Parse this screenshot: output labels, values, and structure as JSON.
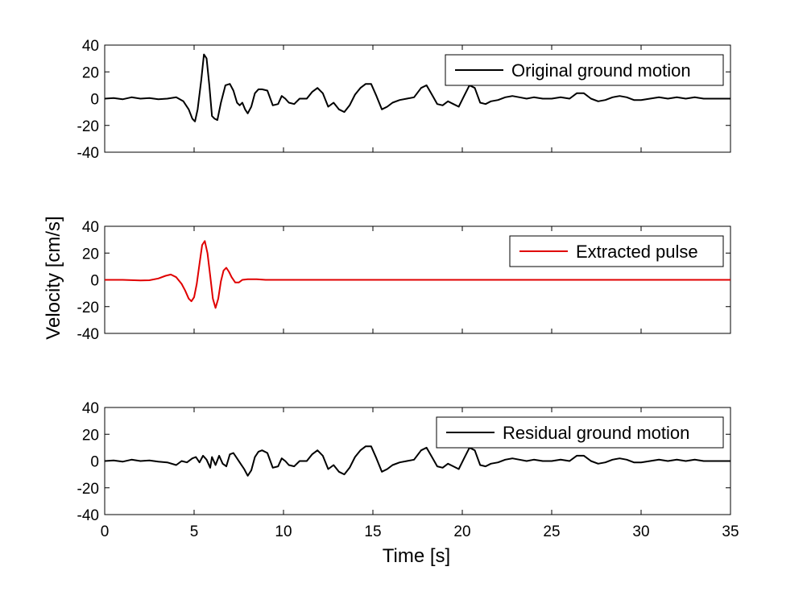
{
  "figure": {
    "ylabel": "Velocity [cm/s]",
    "xlabel": "Time [s]"
  },
  "chart_data": [
    {
      "type": "line",
      "legend": "Original ground motion",
      "legend_position": "top-right",
      "color": "#000000",
      "xlim": [
        0,
        35
      ],
      "ylim": [
        -40,
        40
      ],
      "xticks": [
        0,
        5,
        10,
        15,
        20,
        25,
        30,
        35
      ],
      "yticks": [
        -40,
        -20,
        0,
        20,
        40
      ],
      "show_x_tick_labels": false,
      "series": [
        {
          "name": "Original ground motion",
          "x": [
            0,
            0.5,
            1,
            1.5,
            2,
            2.5,
            3,
            3.5,
            4,
            4.4,
            4.7,
            4.9,
            5.05,
            5.2,
            5.4,
            5.55,
            5.7,
            5.85,
            6,
            6.15,
            6.3,
            6.5,
            6.75,
            7,
            7.2,
            7.4,
            7.55,
            7.7,
            7.85,
            8,
            8.2,
            8.4,
            8.6,
            8.8,
            9.1,
            9.4,
            9.7,
            9.9,
            10.1,
            10.3,
            10.6,
            10.9,
            11.3,
            11.6,
            11.9,
            12.2,
            12.5,
            12.8,
            13.1,
            13.4,
            13.7,
            14,
            14.3,
            14.6,
            14.9,
            15.2,
            15.5,
            15.8,
            16.1,
            16.5,
            16.9,
            17.3,
            17.7,
            18,
            18.3,
            18.6,
            18.9,
            19.2,
            19.5,
            19.8,
            20.1,
            20.4,
            20.7,
            21,
            21.3,
            21.6,
            22,
            22.4,
            22.8,
            23.2,
            23.6,
            24,
            24.5,
            25,
            25.5,
            26,
            26.4,
            26.8,
            27.2,
            27.6,
            28,
            28.4,
            28.8,
            29.2,
            29.6,
            30,
            30.5,
            31,
            31.5,
            32,
            32.5,
            33,
            33.5,
            34,
            34.5,
            35
          ],
          "y": [
            0,
            0.5,
            -0.5,
            1,
            0,
            0.5,
            -0.5,
            0,
            1,
            -2,
            -8,
            -15,
            -17,
            -8,
            14,
            33,
            30,
            10,
            -13,
            -15,
            -16,
            -3,
            10,
            11,
            6,
            -3,
            -5,
            -3,
            -8,
            -11,
            -6,
            4,
            7,
            7,
            6,
            -5,
            -4,
            2,
            0,
            -3,
            -4,
            0,
            0,
            5,
            8,
            4,
            -6,
            -3,
            -8,
            -10,
            -5,
            3,
            8,
            11,
            11,
            2,
            -8,
            -6,
            -3,
            -1,
            0,
            1,
            8,
            10,
            3,
            -4,
            -5,
            -2,
            -4,
            -6,
            2,
            10,
            8,
            -3,
            -4,
            -2,
            -1,
            1,
            2,
            1,
            0,
            1,
            0,
            0,
            1,
            0,
            4,
            4,
            0,
            -2,
            -1,
            1,
            2,
            1,
            -1,
            -1,
            0,
            1,
            0,
            1,
            0,
            1,
            0,
            0,
            0,
            0
          ]
        }
      ]
    },
    {
      "type": "line",
      "legend": "Extracted pulse",
      "legend_position": "top-right",
      "color": "#e00000",
      "xlim": [
        0,
        35
      ],
      "ylim": [
        -40,
        40
      ],
      "xticks": [
        0,
        5,
        10,
        15,
        20,
        25,
        30,
        35
      ],
      "yticks": [
        -40,
        -20,
        0,
        20,
        40
      ],
      "show_x_tick_labels": false,
      "series": [
        {
          "name": "Extracted pulse",
          "x": [
            0,
            1,
            2,
            2.5,
            3,
            3.4,
            3.7,
            4,
            4.3,
            4.5,
            4.7,
            4.85,
            5,
            5.15,
            5.3,
            5.45,
            5.6,
            5.75,
            5.9,
            6.05,
            6.2,
            6.35,
            6.5,
            6.65,
            6.8,
            6.95,
            7.1,
            7.3,
            7.5,
            7.7,
            8,
            8.5,
            9,
            9.5,
            10,
            15,
            20,
            25,
            30,
            35
          ],
          "y": [
            0,
            0,
            -0.5,
            -0.3,
            1,
            3,
            4,
            2,
            -3,
            -8,
            -14,
            -16,
            -13,
            -3,
            12,
            26,
            29,
            20,
            3,
            -14,
            -21,
            -14,
            -1,
            7,
            9,
            6,
            2,
            -2,
            -2,
            0,
            0.5,
            0.5,
            0,
            0,
            0,
            0,
            0,
            0,
            0,
            0
          ]
        }
      ]
    },
    {
      "type": "line",
      "legend": "Residual ground motion",
      "legend_position": "top-right",
      "color": "#000000",
      "xlim": [
        0,
        35
      ],
      "ylim": [
        -40,
        40
      ],
      "xticks": [
        0,
        5,
        10,
        15,
        20,
        25,
        30,
        35
      ],
      "yticks": [
        -40,
        -20,
        0,
        20,
        40
      ],
      "show_x_tick_labels": true,
      "series": [
        {
          "name": "Residual ground motion",
          "x": [
            0,
            0.5,
            1,
            1.5,
            2,
            2.5,
            3,
            3.5,
            4,
            4.3,
            4.6,
            4.9,
            5.1,
            5.3,
            5.5,
            5.7,
            5.9,
            6,
            6.2,
            6.4,
            6.6,
            6.8,
            7,
            7.2,
            7.4,
            7.6,
            7.8,
            8,
            8.2,
            8.4,
            8.6,
            8.8,
            9.1,
            9.4,
            9.7,
            9.9,
            10.1,
            10.3,
            10.6,
            10.9,
            11.3,
            11.6,
            11.9,
            12.2,
            12.5,
            12.8,
            13.1,
            13.4,
            13.7,
            14,
            14.3,
            14.6,
            14.9,
            15.2,
            15.5,
            15.8,
            16.1,
            16.5,
            16.9,
            17.3,
            17.7,
            18,
            18.3,
            18.6,
            18.9,
            19.2,
            19.5,
            19.8,
            20.1,
            20.4,
            20.7,
            21,
            21.3,
            21.6,
            22,
            22.4,
            22.8,
            23.2,
            23.6,
            24,
            24.5,
            25,
            25.5,
            26,
            26.4,
            26.8,
            27.2,
            27.6,
            28,
            28.4,
            28.8,
            29.2,
            29.6,
            30,
            30.5,
            31,
            31.5,
            32,
            32.5,
            33,
            33.5,
            34,
            34.5,
            35
          ],
          "y": [
            0,
            0.5,
            -0.5,
            1,
            0,
            0.5,
            -0.5,
            -1,
            -3,
            0,
            -1,
            2,
            3,
            -1,
            4,
            1,
            -5,
            3,
            -3,
            4,
            -2,
            -4,
            5,
            6,
            2,
            -2,
            -6,
            -11,
            -7,
            3,
            7,
            8,
            6,
            -5,
            -4,
            2,
            0,
            -3,
            -4,
            0,
            0,
            5,
            8,
            4,
            -6,
            -3,
            -8,
            -10,
            -5,
            3,
            8,
            11,
            11,
            2,
            -8,
            -6,
            -3,
            -1,
            0,
            1,
            8,
            10,
            3,
            -4,
            -5,
            -2,
            -4,
            -6,
            2,
            10,
            8,
            -3,
            -4,
            -2,
            -1,
            1,
            2,
            1,
            0,
            1,
            0,
            0,
            1,
            0,
            4,
            4,
            0,
            -2,
            -1,
            1,
            2,
            1,
            -1,
            -1,
            0,
            1,
            0,
            1,
            0,
            1,
            0,
            0,
            0,
            0
          ]
        }
      ]
    }
  ]
}
